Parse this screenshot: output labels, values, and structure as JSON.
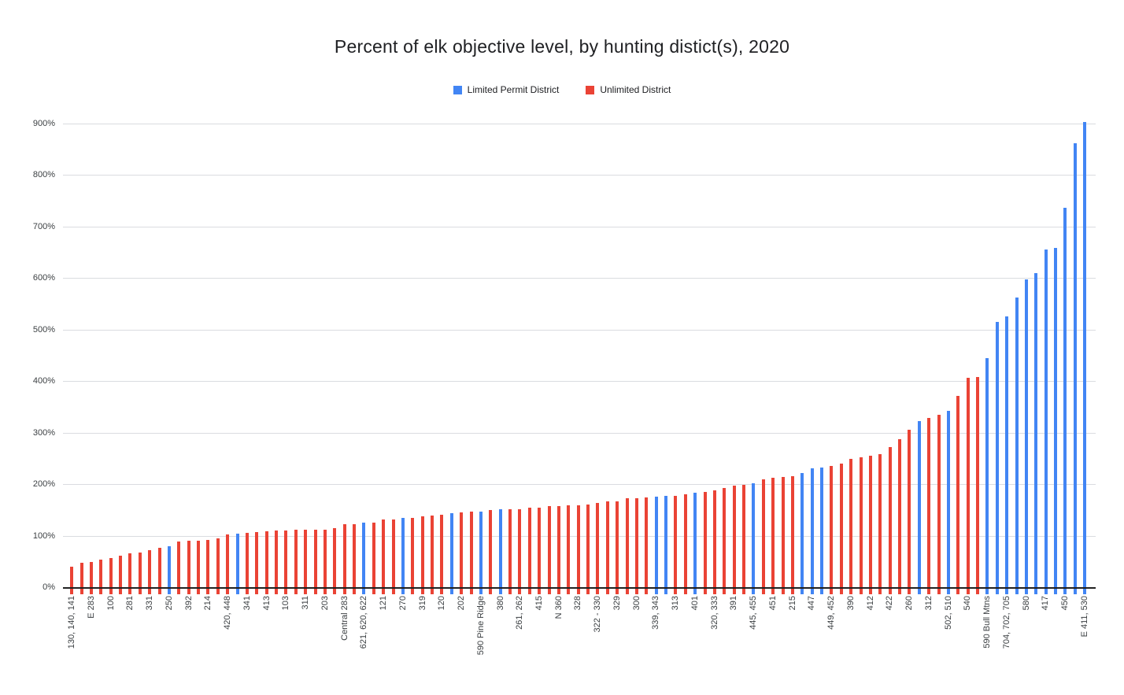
{
  "title": "Percent of elk objective level, by hunting distict(s), 2020",
  "legend": [
    {
      "label": "Limited Permit District",
      "color": "#4285F4"
    },
    {
      "label": "Unlimited District",
      "color": "#EA4335"
    }
  ],
  "y_axis": {
    "tick_labels": [
      "0%",
      "100%",
      "200%",
      "300%",
      "400%",
      "500%",
      "600%",
      "700%",
      "800%",
      "900%"
    ],
    "min": 0,
    "max": 900,
    "step": 100
  },
  "chart_data": {
    "type": "bar",
    "title": "Percent of elk objective level, by hunting distict(s), 2020",
    "xlabel": "",
    "ylabel": "",
    "ylim": [
      0,
      900
    ],
    "unit": "percent",
    "grid": true,
    "legend_position": "top-center",
    "series_names": {
      "limited": "Limited Permit District",
      "unlimited": "Unlimited District"
    },
    "bars": [
      {
        "district": "130, 140, 141",
        "value": 39,
        "series": "unlimited"
      },
      {
        "district": "",
        "value": 48,
        "series": "unlimited"
      },
      {
        "district": "E 283",
        "value": 49,
        "series": "unlimited"
      },
      {
        "district": "",
        "value": 53,
        "series": "unlimited"
      },
      {
        "district": "100",
        "value": 57,
        "series": "unlimited"
      },
      {
        "district": "",
        "value": 61,
        "series": "unlimited"
      },
      {
        "district": "281",
        "value": 65,
        "series": "unlimited"
      },
      {
        "district": "",
        "value": 68,
        "series": "unlimited"
      },
      {
        "district": "331",
        "value": 72,
        "series": "unlimited"
      },
      {
        "district": "",
        "value": 76,
        "series": "unlimited"
      },
      {
        "district": "250",
        "value": 80,
        "series": "limited"
      },
      {
        "district": "",
        "value": 89,
        "series": "unlimited"
      },
      {
        "district": "392",
        "value": 90,
        "series": "unlimited"
      },
      {
        "district": "",
        "value": 90,
        "series": "unlimited"
      },
      {
        "district": "214",
        "value": 92,
        "series": "unlimited"
      },
      {
        "district": "",
        "value": 95,
        "series": "unlimited"
      },
      {
        "district": "420, 448",
        "value": 103,
        "series": "unlimited"
      },
      {
        "district": "",
        "value": 104,
        "series": "limited"
      },
      {
        "district": "341",
        "value": 105,
        "series": "unlimited"
      },
      {
        "district": "",
        "value": 107,
        "series": "unlimited"
      },
      {
        "district": "413",
        "value": 109,
        "series": "unlimited"
      },
      {
        "district": "",
        "value": 110,
        "series": "unlimited"
      },
      {
        "district": "103",
        "value": 110,
        "series": "unlimited"
      },
      {
        "district": "",
        "value": 111,
        "series": "unlimited"
      },
      {
        "district": "311",
        "value": 111,
        "series": "unlimited"
      },
      {
        "district": "",
        "value": 111,
        "series": "unlimited"
      },
      {
        "district": "203",
        "value": 112,
        "series": "unlimited"
      },
      {
        "district": "",
        "value": 114,
        "series": "unlimited"
      },
      {
        "district": "Central 283",
        "value": 122,
        "series": "unlimited"
      },
      {
        "district": "",
        "value": 123,
        "series": "unlimited"
      },
      {
        "district": "621, 620, 622",
        "value": 125,
        "series": "limited"
      },
      {
        "district": "",
        "value": 126,
        "series": "unlimited"
      },
      {
        "district": "121",
        "value": 131,
        "series": "unlimited"
      },
      {
        "district": "",
        "value": 132,
        "series": "unlimited"
      },
      {
        "district": "270",
        "value": 134,
        "series": "limited"
      },
      {
        "district": "",
        "value": 135,
        "series": "unlimited"
      },
      {
        "district": "319",
        "value": 138,
        "series": "unlimited"
      },
      {
        "district": "",
        "value": 139,
        "series": "unlimited"
      },
      {
        "district": "120",
        "value": 141,
        "series": "unlimited"
      },
      {
        "district": "",
        "value": 143,
        "series": "limited"
      },
      {
        "district": "202",
        "value": 145,
        "series": "unlimited"
      },
      {
        "district": "",
        "value": 146,
        "series": "unlimited"
      },
      {
        "district": "590 Pine Ridge",
        "value": 146,
        "series": "limited"
      },
      {
        "district": "",
        "value": 150,
        "series": "unlimited"
      },
      {
        "district": "380",
        "value": 151,
        "series": "limited"
      },
      {
        "district": "",
        "value": 152,
        "series": "unlimited"
      },
      {
        "district": "261, 262",
        "value": 152,
        "series": "unlimited"
      },
      {
        "district": "",
        "value": 154,
        "series": "unlimited"
      },
      {
        "district": "415",
        "value": 155,
        "series": "unlimited"
      },
      {
        "district": "",
        "value": 157,
        "series": "unlimited"
      },
      {
        "district": "N 360",
        "value": 158,
        "series": "unlimited"
      },
      {
        "district": "",
        "value": 159,
        "series": "unlimited"
      },
      {
        "district": "328",
        "value": 159,
        "series": "unlimited"
      },
      {
        "district": "",
        "value": 160,
        "series": "unlimited"
      },
      {
        "district": "322 - 330",
        "value": 163,
        "series": "unlimited"
      },
      {
        "district": "",
        "value": 166,
        "series": "unlimited"
      },
      {
        "district": "329",
        "value": 167,
        "series": "unlimited"
      },
      {
        "district": "",
        "value": 172,
        "series": "unlimited"
      },
      {
        "district": "300",
        "value": 173,
        "series": "unlimited"
      },
      {
        "district": "",
        "value": 174,
        "series": "unlimited"
      },
      {
        "district": "339, 343",
        "value": 175,
        "series": "limited"
      },
      {
        "district": "",
        "value": 177,
        "series": "limited"
      },
      {
        "district": "313",
        "value": 178,
        "series": "unlimited"
      },
      {
        "district": "",
        "value": 180,
        "series": "unlimited"
      },
      {
        "district": "401",
        "value": 183,
        "series": "limited"
      },
      {
        "district": "",
        "value": 185,
        "series": "unlimited"
      },
      {
        "district": "320, 333",
        "value": 188,
        "series": "unlimited"
      },
      {
        "district": "",
        "value": 192,
        "series": "unlimited"
      },
      {
        "district": "391",
        "value": 197,
        "series": "unlimited"
      },
      {
        "district": "",
        "value": 198,
        "series": "unlimited"
      },
      {
        "district": "445, 455",
        "value": 202,
        "series": "limited"
      },
      {
        "district": "",
        "value": 209,
        "series": "unlimited"
      },
      {
        "district": "451",
        "value": 212,
        "series": "unlimited"
      },
      {
        "district": "",
        "value": 214,
        "series": "unlimited"
      },
      {
        "district": "215",
        "value": 216,
        "series": "unlimited"
      },
      {
        "district": "",
        "value": 221,
        "series": "limited"
      },
      {
        "district": "447",
        "value": 231,
        "series": "limited"
      },
      {
        "district": "",
        "value": 233,
        "series": "limited"
      },
      {
        "district": "449, 452",
        "value": 235,
        "series": "unlimited"
      },
      {
        "district": "",
        "value": 240,
        "series": "unlimited"
      },
      {
        "district": "390",
        "value": 249,
        "series": "unlimited"
      },
      {
        "district": "",
        "value": 252,
        "series": "unlimited"
      },
      {
        "district": "412",
        "value": 255,
        "series": "unlimited"
      },
      {
        "district": "",
        "value": 258,
        "series": "unlimited"
      },
      {
        "district": "422",
        "value": 272,
        "series": "unlimited"
      },
      {
        "district": "",
        "value": 287,
        "series": "unlimited"
      },
      {
        "district": "260",
        "value": 306,
        "series": "unlimited"
      },
      {
        "district": "",
        "value": 323,
        "series": "limited"
      },
      {
        "district": "312",
        "value": 328,
        "series": "unlimited"
      },
      {
        "district": "",
        "value": 334,
        "series": "unlimited"
      },
      {
        "district": "502, 510",
        "value": 343,
        "series": "limited"
      },
      {
        "district": "",
        "value": 372,
        "series": "unlimited"
      },
      {
        "district": "540",
        "value": 406,
        "series": "unlimited"
      },
      {
        "district": "",
        "value": 408,
        "series": "unlimited"
      },
      {
        "district": "590 Bull Mtns",
        "value": 445,
        "series": "limited"
      },
      {
        "district": "",
        "value": 515,
        "series": "limited"
      },
      {
        "district": "704, 702, 705",
        "value": 525,
        "series": "limited"
      },
      {
        "district": "",
        "value": 562,
        "series": "limited"
      },
      {
        "district": "580",
        "value": 597,
        "series": "limited"
      },
      {
        "district": "",
        "value": 610,
        "series": "limited"
      },
      {
        "district": "417",
        "value": 655,
        "series": "limited"
      },
      {
        "district": "",
        "value": 658,
        "series": "limited"
      },
      {
        "district": "450",
        "value": 737,
        "series": "limited"
      },
      {
        "district": "",
        "value": 862,
        "series": "limited"
      },
      {
        "district": "E 411, 530",
        "value": 903,
        "series": "limited"
      }
    ]
  }
}
